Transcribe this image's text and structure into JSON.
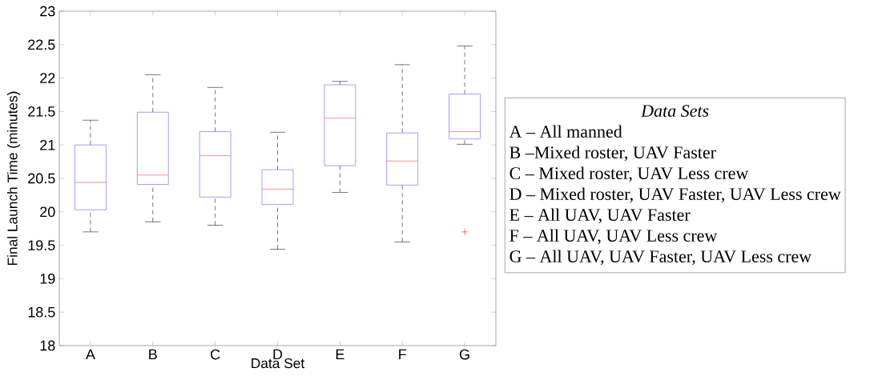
{
  "chart_data": {
    "type": "box",
    "xlabel": "Data Set",
    "ylabel": "Final Launch Time (minutes)",
    "categories": [
      "A",
      "B",
      "C",
      "D",
      "E",
      "F",
      "G"
    ],
    "boxes": [
      {
        "low": 19.7,
        "q1": 20.03,
        "median": 20.44,
        "q3": 21.0,
        "high": 21.37
      },
      {
        "low": 19.85,
        "q1": 20.41,
        "median": 20.55,
        "q3": 21.49,
        "high": 22.05
      },
      {
        "low": 19.8,
        "q1": 20.22,
        "median": 20.84,
        "q3": 21.2,
        "high": 21.86
      },
      {
        "low": 19.44,
        "q1": 20.11,
        "median": 20.34,
        "q3": 20.63,
        "high": 21.19
      },
      {
        "low": 20.29,
        "q1": 20.69,
        "median": 21.4,
        "q3": 21.9,
        "high": 21.95
      },
      {
        "low": 19.55,
        "q1": 20.4,
        "median": 20.76,
        "q3": 21.18,
        "high": 22.2
      },
      {
        "low": 21.01,
        "q1": 21.09,
        "median": 21.2,
        "q3": 21.76,
        "high": 22.48,
        "outliers": [
          19.7
        ]
      }
    ],
    "ylim": [
      18,
      23
    ],
    "yticks": [
      18,
      18.5,
      19,
      19.5,
      20,
      20.5,
      21,
      21.5,
      22,
      22.5,
      23
    ],
    "legend_title": "Data Sets",
    "annotations": [
      "A – All manned",
      "B –Mixed roster, UAV Faster",
      "C – Mixed roster, UAV Less crew",
      "D – Mixed roster, UAV Faster, UAV Less crew",
      "E – All UAV, UAV Faster",
      "F – All UAV, UAV Less crew",
      "G – All UAV, UAV Faster, UAV Less crew"
    ]
  }
}
